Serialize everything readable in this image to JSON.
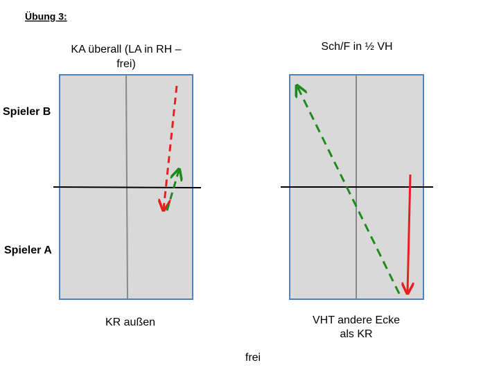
{
  "title": "Übung 3:",
  "players": {
    "top": "Spieler B",
    "bottom": "Spieler A"
  },
  "tables": [
    {
      "heading": [
        "KA überall (LA in RH –",
        "frei)"
      ],
      "caption": [
        "KR außen"
      ]
    },
    {
      "heading": [
        "Sch/F in ½ VH"
      ],
      "caption": [
        "VHT andere Ecke",
        "als KR"
      ]
    }
  ],
  "footer": "frei"
}
